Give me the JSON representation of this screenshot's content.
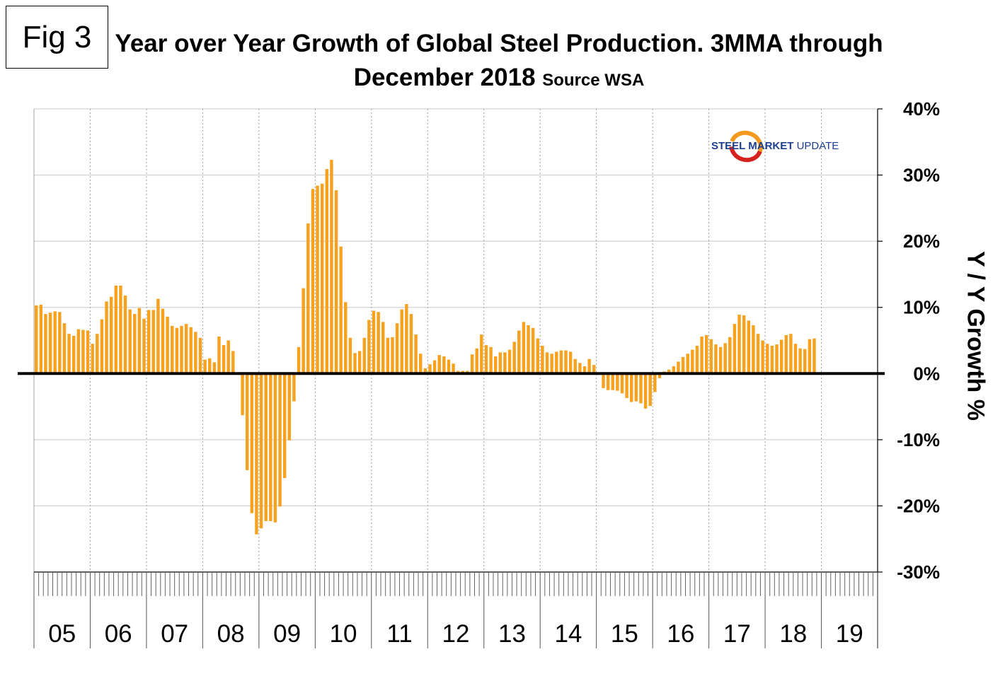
{
  "figure": {
    "label": "Fig 3",
    "title_main": "Year over Year Growth of Global Steel Production. 3MMA through December 2018",
    "title_source": "Source WSA"
  },
  "logo": {
    "text_bold": "STEEL MARKET",
    "text_regular": "UPDATE",
    "colors": {
      "text": "#1d3f8f",
      "ring_red": "#d6221e",
      "ring_orange": "#f39a1e"
    }
  },
  "colors": {
    "bar": "#f6a21f",
    "grid": "#c8c8c8",
    "zero_line": "#000000"
  },
  "chart_data": {
    "type": "bar",
    "ylabel": "Y / Y Growth %",
    "xlabel": "",
    "ylim": [
      -30,
      40
    ],
    "yticks": [
      -30,
      -20,
      -10,
      0,
      10,
      20,
      30,
      40
    ],
    "ytick_labels": [
      "-30%",
      "-20%",
      "-10%",
      "0%",
      "10%",
      "20%",
      "30%",
      "40%"
    ],
    "year_labels": [
      "05",
      "06",
      "07",
      "08",
      "09",
      "10",
      "11",
      "12",
      "13",
      "14",
      "15",
      "16",
      "17",
      "18",
      "19"
    ],
    "x_start": "2005-01",
    "x_end": "2019-12",
    "grid": "vertical year dividers and horizontal lines at each 10%",
    "series": [
      {
        "values": [
          10.3,
          10.4,
          9.0,
          9.2,
          9.4,
          9.3,
          7.6,
          6.0,
          5.7,
          6.7,
          6.6,
          6.5,
          4.5,
          6.0,
          8.2,
          10.9,
          11.6,
          13.3,
          13.3,
          11.8,
          9.7,
          9.0,
          9.9,
          8.3,
          9.6,
          9.6,
          11.3,
          9.8,
          8.6,
          7.2,
          6.9,
          7.2,
          7.5,
          7.0,
          6.3,
          5.4,
          2.1,
          2.3,
          1.7,
          5.6,
          4.3,
          5.0,
          3.4,
          0.0,
          -6.3,
          -14.6,
          -21.1,
          -24.3,
          -23.4,
          -22.3,
          -22.3,
          -22.5,
          -20.1,
          -15.8,
          -10.1,
          -4.2,
          4.0,
          12.9,
          22.7,
          27.9,
          28.4,
          28.7,
          30.9,
          32.3,
          27.7,
          19.2,
          10.8,
          5.4,
          3.1,
          3.4,
          5.4,
          8.1,
          9.5,
          9.3,
          7.8,
          5.4,
          5.5,
          7.6,
          9.7,
          10.5,
          9.0,
          5.9,
          3.0,
          0.8,
          1.4,
          2.0,
          2.8,
          2.6,
          2.1,
          1.5,
          0.4,
          0.4,
          0.4,
          2.9,
          3.8,
          5.9,
          4.3,
          4.0,
          2.6,
          3.2,
          3.2,
          3.6,
          4.8,
          6.5,
          7.8,
          7.3,
          6.9,
          5.3,
          4.2,
          3.2,
          3.0,
          3.3,
          3.5,
          3.5,
          3.3,
          2.2,
          1.6,
          1.1,
          2.2,
          1.3,
          0.0,
          -2.2,
          -2.5,
          -2.5,
          -2.6,
          -3.0,
          -3.7,
          -4.3,
          -4.2,
          -4.5,
          -5.3,
          -4.9,
          -2.8,
          -0.7,
          0.3,
          0.6,
          1.1,
          1.8,
          2.5,
          3.0,
          3.6,
          4.2,
          5.6,
          5.8,
          5.2,
          4.4,
          4.0,
          4.6,
          5.5,
          7.5,
          8.9,
          8.8,
          8.0,
          7.3,
          6.0,
          5.0,
          4.5,
          4.2,
          4.4,
          5.1,
          5.8,
          6.0,
          4.5,
          3.8,
          3.7,
          5.2,
          5.3
        ]
      }
    ]
  }
}
